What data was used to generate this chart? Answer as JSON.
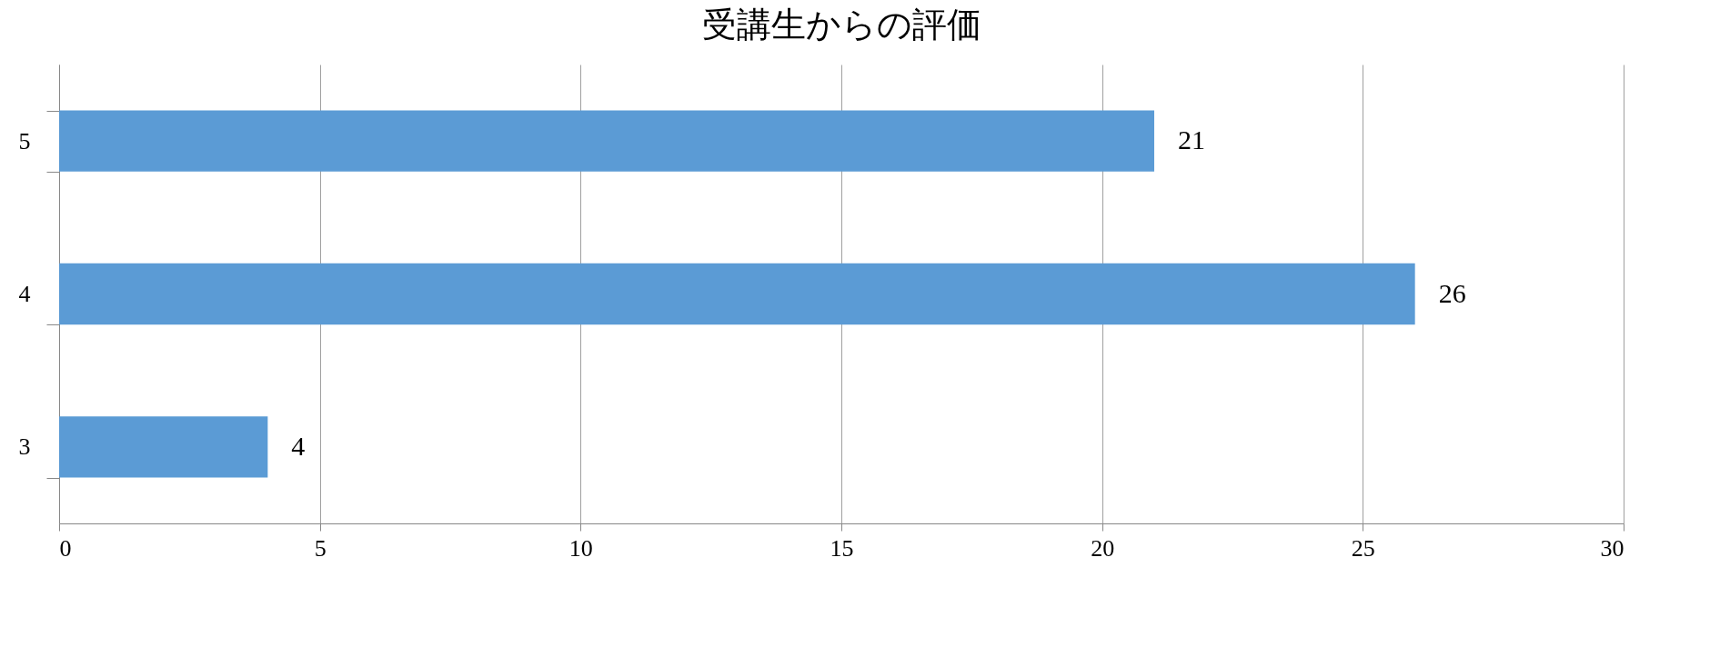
{
  "chart_data": {
    "type": "bar",
    "orientation": "horizontal",
    "title": "受講生からの評価",
    "categories": [
      "5",
      "4",
      "3"
    ],
    "values": [
      21,
      26,
      4
    ],
    "color": "#5b9bd5",
    "xlim": [
      0,
      30
    ],
    "xticks": [
      0,
      5,
      10,
      15,
      20,
      25,
      30
    ],
    "grid": "x",
    "data_labels": true
  }
}
